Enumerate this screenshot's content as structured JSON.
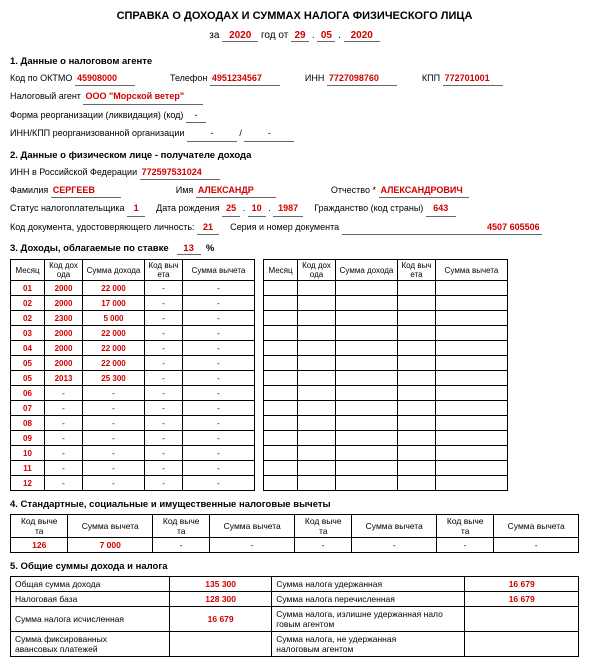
{
  "title": "СПРАВКА О ДОХОДАХ И СУММАХ НАЛОГА ФИЗИЧЕСКОГО ЛИЦА",
  "subtitle_parts": {
    "za": "за",
    "year": "2020",
    "god_ot": "год от",
    "d": "29",
    "m": "05",
    "y": "2020"
  },
  "s1": {
    "h": "1. Данные о налоговом агенте",
    "oktmo_lbl": "Код по ОКТМО",
    "oktmo": "45908000",
    "tel_lbl": "Телефон",
    "tel": "4951234567",
    "inn_lbl": "ИНН",
    "inn": "7727098760",
    "kpp_lbl": "КПП",
    "kpp": "772701001",
    "agent_lbl": "Налоговый агент",
    "agent": "ООО \"Морской ветер\"",
    "reorg_lbl": "Форма реорганизации (ликвидация) (код)",
    "reorg": "-",
    "reorg_inn_lbl": "ИНН/КПП реорганизованной организации",
    "reorg_inn": "-",
    "reorg_kpp": "-"
  },
  "s2": {
    "h": "2. Данные о физическом лице - получателе дохода",
    "inn_lbl": "ИНН в Российской Федерации",
    "inn": "772597531024",
    "fam_lbl": "Фамилия",
    "fam": "СЕРГЕЕВ",
    "name_lbl": "Имя",
    "name": "АЛЕКСАНДР",
    "patr_lbl": "Отчество *",
    "patr": "АЛЕКСАНДРОВИЧ",
    "status_lbl": "Статус налогоплательщика",
    "status": "1",
    "dob_lbl": "Дата рождения",
    "dob_d": "25",
    "dob_m": "10",
    "dob_y": "1987",
    "cit_lbl": "Гражданство (код страны)",
    "cit": "643",
    "doc_code_lbl": "Код документа, удостоверяющего личность:",
    "doc_code": "21",
    "doc_num_lbl": "Серия и номер документа",
    "doc_num": "4507 605506"
  },
  "s3": {
    "h": "3. Доходы, облагаемые по ставке",
    "rate": "13",
    "pct": "%",
    "cols": [
      "Месяц",
      "Код дох\nода",
      "Сумма дохода",
      "Код выч\nета",
      "Сумма вычета"
    ],
    "left": [
      {
        "m": "01",
        "c": "2000",
        "s": "22 000",
        "vc": "-",
        "vs": "-"
      },
      {
        "m": "02",
        "c": "2000",
        "s": "17 000",
        "vc": "-",
        "vs": "-"
      },
      {
        "m": "02",
        "c": "2300",
        "s": "5 000",
        "vc": "-",
        "vs": "-"
      },
      {
        "m": "03",
        "c": "2000",
        "s": "22 000",
        "vc": "-",
        "vs": "-"
      },
      {
        "m": "04",
        "c": "2000",
        "s": "22 000",
        "vc": "-",
        "vs": "-"
      },
      {
        "m": "05",
        "c": "2000",
        "s": "22 000",
        "vc": "-",
        "vs": "-"
      },
      {
        "m": "05",
        "c": "2013",
        "s": "25 300",
        "vc": "-",
        "vs": "-"
      },
      {
        "m": "06",
        "c": "-",
        "s": "-",
        "vc": "-",
        "vs": "-"
      },
      {
        "m": "07",
        "c": "-",
        "s": "-",
        "vc": "-",
        "vs": "-"
      },
      {
        "m": "08",
        "c": "-",
        "s": "-",
        "vc": "-",
        "vs": "-"
      },
      {
        "m": "09",
        "c": "-",
        "s": "-",
        "vc": "-",
        "vs": "-"
      },
      {
        "m": "10",
        "c": "-",
        "s": "-",
        "vc": "-",
        "vs": "-"
      },
      {
        "m": "11",
        "c": "-",
        "s": "-",
        "vc": "-",
        "vs": "-"
      },
      {
        "m": "12",
        "c": "-",
        "s": "-",
        "vc": "-",
        "vs": "-"
      }
    ],
    "right_rows": 14
  },
  "s4": {
    "h": "4. Стандартные, социальные и имущественные налоговые вычеты",
    "cols": [
      "Код выче\nта",
      "Сумма вычета",
      "Код выче\nта",
      "Сумма вычета",
      "Код выче\nта",
      "Сумма вычета",
      "Код выче\nта",
      "Сумма вычета"
    ],
    "rows": [
      {
        "c1": "126",
        "s1": "7 000",
        "c2": "-",
        "s2": "-",
        "c3": "-",
        "s3": "-",
        "c4": "-",
        "s4": "-"
      }
    ]
  },
  "s5": {
    "h": "5. Общие суммы дохода и налога",
    "rows": [
      {
        "l1": "Общая сумма дохода",
        "v1": "135 300",
        "l2": "Сумма налога удержанная",
        "v2": "16 679"
      },
      {
        "l1": "Налоговая база",
        "v1": "128 300",
        "l2": "Сумма налога перечисленная",
        "v2": "16 679"
      },
      {
        "l1": "Сумма налога исчисленная",
        "v1": "16 679",
        "l2": "Сумма налога, излишне удержанная нало\nговым агентом",
        "v2": ""
      },
      {
        "l1": "Сумма фиксированных\nавансовых платежей",
        "v1": "",
        "l2": "Сумма налога, не удержанная\nналоговым агентом",
        "v2": ""
      }
    ]
  },
  "colors": {
    "red": "#d00000",
    "text": "#000000",
    "border": "#000000",
    "underline": "#666666"
  }
}
